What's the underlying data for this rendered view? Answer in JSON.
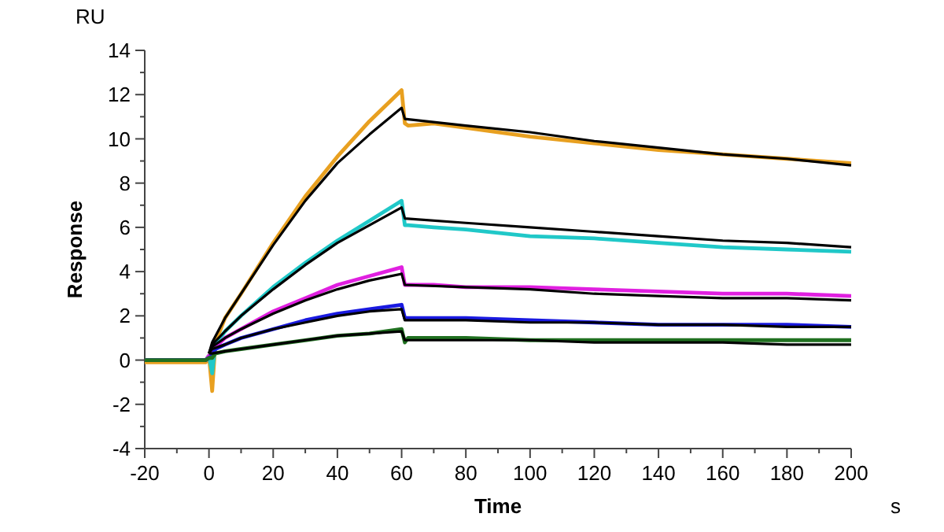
{
  "chart_data": {
    "type": "line",
    "xlabel": "Time",
    "ylabel": "Response",
    "annotations": [
      "RU",
      "s"
    ],
    "xlim": [
      -20,
      200
    ],
    "ylim": [
      -4,
      14
    ],
    "xticks": [
      -20,
      {
        "value": -10,
        "label": null
      },
      0,
      {
        "value": 10,
        "label": null
      },
      20,
      {
        "value": 30,
        "label": null
      },
      40,
      {
        "value": 50,
        "label": null
      },
      60,
      {
        "value": 70,
        "label": null
      },
      80,
      {
        "value": 90,
        "label": null
      },
      100,
      {
        "value": 110,
        "label": null
      },
      120,
      {
        "value": 130,
        "label": null
      },
      140,
      {
        "value": 150,
        "label": null
      },
      160,
      {
        "value": 170,
        "label": null
      },
      180,
      {
        "value": 190,
        "label": null
      },
      200
    ],
    "yticks": [
      -4,
      {
        "value": -3,
        "label": null
      },
      -2,
      {
        "value": -1,
        "label": null
      },
      0,
      {
        "value": 1,
        "label": null
      },
      2,
      {
        "value": 3,
        "label": null
      },
      4,
      {
        "value": 5,
        "label": null
      },
      6,
      {
        "value": 7,
        "label": null
      },
      8,
      {
        "value": 9,
        "label": null
      },
      10,
      {
        "value": 11,
        "label": null
      },
      12,
      {
        "value": 13,
        "label": null
      },
      14
    ],
    "grid": false,
    "marker": "none",
    "line_style": "solid",
    "series": [
      {
        "color": "#e8a020",
        "x": [
          -20,
          -1,
          0,
          1,
          2,
          5,
          10,
          20,
          30,
          40,
          50,
          60,
          61,
          62,
          70,
          80,
          100,
          120,
          140,
          160,
          180,
          200
        ],
        "values": [
          -0.1,
          -0.1,
          0.2,
          -1.4,
          0.8,
          1.9,
          3.0,
          5.3,
          7.4,
          9.2,
          10.8,
          12.2,
          10.7,
          10.6,
          10.7,
          10.5,
          10.1,
          9.8,
          9.5,
          9.3,
          9.1,
          8.9
        ]
      },
      {
        "color": "#20c8c8",
        "x": [
          -20,
          -1,
          0,
          1,
          2,
          5,
          10,
          20,
          30,
          40,
          50,
          60,
          61,
          62,
          70,
          80,
          100,
          120,
          140,
          160,
          180,
          200
        ],
        "values": [
          0,
          0,
          0.2,
          -0.6,
          0.7,
          1.3,
          2.0,
          3.3,
          4.4,
          5.4,
          6.3,
          7.2,
          6.1,
          6.1,
          6.0,
          5.9,
          5.6,
          5.5,
          5.3,
          5.1,
          5.0,
          4.9
        ]
      },
      {
        "color": "#e020e0",
        "x": [
          -20,
          -1,
          0,
          1,
          2,
          5,
          10,
          20,
          30,
          40,
          50,
          60,
          61,
          62,
          70,
          80,
          100,
          120,
          140,
          160,
          180,
          200
        ],
        "values": [
          0,
          0,
          0.2,
          0.3,
          0.6,
          1.0,
          1.4,
          2.2,
          2.8,
          3.4,
          3.8,
          4.2,
          3.4,
          3.4,
          3.4,
          3.3,
          3.3,
          3.2,
          3.1,
          3.0,
          3.0,
          2.9
        ]
      },
      {
        "color": "#1a1ae0",
        "x": [
          -20,
          -1,
          0,
          1,
          2,
          5,
          10,
          20,
          30,
          40,
          50,
          60,
          61,
          62,
          70,
          80,
          100,
          120,
          140,
          160,
          180,
          200
        ],
        "values": [
          0,
          0,
          0.1,
          0.2,
          0.5,
          0.7,
          1.0,
          1.4,
          1.8,
          2.1,
          2.3,
          2.5,
          1.9,
          1.9,
          1.9,
          1.9,
          1.8,
          1.7,
          1.6,
          1.6,
          1.6,
          1.5
        ]
      },
      {
        "color": "#207020",
        "x": [
          -20,
          -1,
          0,
          1,
          2,
          5,
          10,
          20,
          30,
          40,
          50,
          60,
          61,
          62,
          70,
          80,
          100,
          120,
          140,
          160,
          180,
          200
        ],
        "values": [
          0,
          0,
          0.1,
          0.1,
          0.3,
          0.4,
          0.5,
          0.7,
          0.9,
          1.1,
          1.2,
          1.4,
          0.8,
          1.0,
          1.0,
          1.0,
          0.9,
          0.9,
          0.9,
          0.9,
          0.9,
          0.9
        ]
      },
      {
        "color": "#000000",
        "x": [
          0,
          1,
          5,
          10,
          20,
          30,
          40,
          50,
          60,
          61,
          80,
          100,
          120,
          140,
          160,
          180,
          200
        ],
        "values": [
          0.3,
          0.8,
          1.9,
          3.0,
          5.2,
          7.2,
          8.9,
          10.2,
          11.4,
          10.9,
          10.6,
          10.3,
          9.9,
          9.6,
          9.3,
          9.1,
          8.8
        ]
      },
      {
        "color": "#000000",
        "x": [
          0,
          1,
          5,
          10,
          20,
          30,
          40,
          50,
          60,
          61,
          80,
          100,
          120,
          140,
          160,
          180,
          200
        ],
        "values": [
          0.3,
          0.7,
          1.3,
          2.0,
          3.2,
          4.3,
          5.3,
          6.1,
          6.9,
          6.4,
          6.2,
          6.0,
          5.8,
          5.6,
          5.4,
          5.3,
          5.1
        ]
      },
      {
        "color": "#000000",
        "x": [
          0,
          1,
          5,
          10,
          20,
          30,
          40,
          50,
          60,
          61,
          80,
          100,
          120,
          140,
          160,
          180,
          200
        ],
        "values": [
          0.3,
          0.6,
          1.0,
          1.4,
          2.1,
          2.7,
          3.2,
          3.6,
          3.9,
          3.4,
          3.3,
          3.2,
          3.0,
          2.9,
          2.8,
          2.8,
          2.7
        ]
      },
      {
        "color": "#000000",
        "x": [
          0,
          1,
          5,
          10,
          20,
          30,
          40,
          50,
          60,
          61,
          80,
          100,
          120,
          140,
          160,
          180,
          200
        ],
        "values": [
          0.3,
          0.5,
          0.7,
          1.0,
          1.4,
          1.7,
          2.0,
          2.2,
          2.3,
          1.8,
          1.8,
          1.7,
          1.7,
          1.6,
          1.6,
          1.5,
          1.5
        ]
      },
      {
        "color": "#000000",
        "x": [
          0,
          1,
          5,
          10,
          20,
          30,
          40,
          50,
          60,
          61,
          80,
          100,
          120,
          140,
          160,
          180,
          200
        ],
        "values": [
          0.3,
          0.3,
          0.4,
          0.5,
          0.7,
          0.9,
          1.1,
          1.2,
          1.3,
          0.9,
          0.9,
          0.9,
          0.8,
          0.8,
          0.8,
          0.7,
          0.7
        ]
      }
    ]
  }
}
